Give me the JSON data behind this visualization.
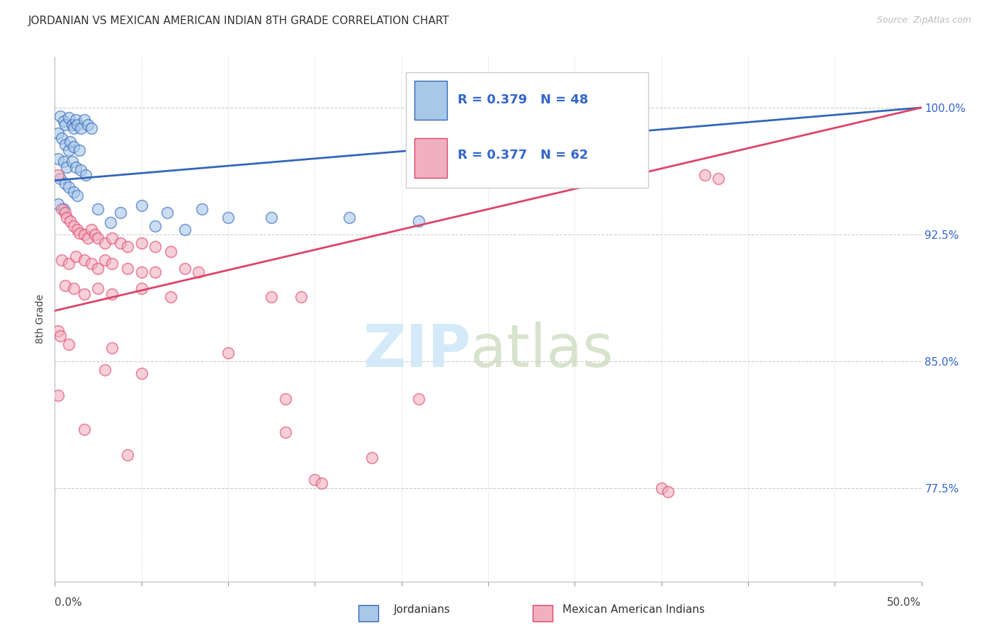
{
  "title": "JORDANIAN VS MEXICAN AMERICAN INDIAN 8TH GRADE CORRELATION CHART",
  "source": "Source: ZipAtlas.com",
  "ylabel": "8th Grade",
  "y_ticks": [
    100.0,
    92.5,
    85.0,
    77.5
  ],
  "x_range": [
    0.0,
    50.0
  ],
  "y_range": [
    72.0,
    103.0
  ],
  "legend": {
    "blue_R": "R = 0.379",
    "blue_N": "N = 48",
    "pink_R": "R = 0.377",
    "pink_N": "N = 62"
  },
  "blue_color": "#a8c8e8",
  "pink_color": "#f0b0c0",
  "blue_line_color": "#3366bb",
  "pink_line_color": "#dd4466",
  "legend_R_color": "#3366cc",
  "blue_scatter": [
    [
      0.3,
      99.5
    ],
    [
      0.5,
      99.2
    ],
    [
      0.6,
      99.0
    ],
    [
      0.8,
      99.4
    ],
    [
      1.0,
      99.0
    ],
    [
      1.1,
      98.8
    ],
    [
      1.2,
      99.3
    ],
    [
      1.3,
      99.0
    ],
    [
      1.5,
      98.8
    ],
    [
      1.7,
      99.3
    ],
    [
      1.9,
      99.0
    ],
    [
      2.1,
      98.8
    ],
    [
      0.2,
      98.5
    ],
    [
      0.4,
      98.2
    ],
    [
      0.6,
      97.8
    ],
    [
      0.8,
      97.5
    ],
    [
      0.9,
      98.0
    ],
    [
      1.1,
      97.7
    ],
    [
      1.4,
      97.5
    ],
    [
      0.2,
      97.0
    ],
    [
      0.5,
      96.8
    ],
    [
      0.7,
      96.5
    ],
    [
      1.0,
      96.8
    ],
    [
      1.2,
      96.5
    ],
    [
      1.5,
      96.3
    ],
    [
      1.8,
      96.0
    ],
    [
      0.3,
      95.8
    ],
    [
      0.6,
      95.5
    ],
    [
      0.8,
      95.3
    ],
    [
      1.1,
      95.0
    ],
    [
      1.3,
      94.8
    ],
    [
      0.2,
      94.3
    ],
    [
      0.5,
      94.0
    ],
    [
      2.5,
      94.0
    ],
    [
      3.8,
      93.8
    ],
    [
      5.0,
      94.2
    ],
    [
      6.5,
      93.8
    ],
    [
      8.5,
      94.0
    ],
    [
      10.0,
      93.5
    ],
    [
      12.5,
      93.5
    ],
    [
      17.0,
      93.5
    ],
    [
      21.0,
      93.3
    ],
    [
      25.5,
      99.8
    ],
    [
      27.0,
      99.5
    ],
    [
      29.5,
      99.3
    ],
    [
      3.2,
      93.2
    ],
    [
      5.8,
      93.0
    ],
    [
      7.5,
      92.8
    ]
  ],
  "pink_scatter": [
    [
      0.2,
      96.0
    ],
    [
      0.4,
      94.0
    ],
    [
      0.6,
      93.8
    ],
    [
      0.7,
      93.5
    ],
    [
      0.9,
      93.3
    ],
    [
      1.1,
      93.0
    ],
    [
      1.3,
      92.8
    ],
    [
      1.4,
      92.6
    ],
    [
      1.7,
      92.5
    ],
    [
      1.9,
      92.3
    ],
    [
      2.1,
      92.8
    ],
    [
      2.3,
      92.5
    ],
    [
      2.5,
      92.3
    ],
    [
      2.9,
      92.0
    ],
    [
      3.3,
      92.3
    ],
    [
      3.8,
      92.0
    ],
    [
      4.2,
      91.8
    ],
    [
      5.0,
      92.0
    ],
    [
      5.8,
      91.8
    ],
    [
      6.7,
      91.5
    ],
    [
      0.4,
      91.0
    ],
    [
      0.8,
      90.8
    ],
    [
      1.2,
      91.2
    ],
    [
      1.7,
      91.0
    ],
    [
      2.1,
      90.8
    ],
    [
      2.5,
      90.5
    ],
    [
      2.9,
      91.0
    ],
    [
      3.3,
      90.8
    ],
    [
      4.2,
      90.5
    ],
    [
      5.0,
      90.3
    ],
    [
      5.8,
      90.3
    ],
    [
      7.5,
      90.5
    ],
    [
      8.3,
      90.3
    ],
    [
      0.6,
      89.5
    ],
    [
      1.1,
      89.3
    ],
    [
      1.7,
      89.0
    ],
    [
      2.5,
      89.3
    ],
    [
      3.3,
      89.0
    ],
    [
      5.0,
      89.3
    ],
    [
      6.7,
      88.8
    ],
    [
      12.5,
      88.8
    ],
    [
      14.2,
      88.8
    ],
    [
      0.2,
      86.8
    ],
    [
      0.3,
      86.5
    ],
    [
      0.8,
      86.0
    ],
    [
      3.3,
      85.8
    ],
    [
      10.0,
      85.5
    ],
    [
      2.9,
      84.5
    ],
    [
      5.0,
      84.3
    ],
    [
      0.2,
      83.0
    ],
    [
      13.3,
      82.8
    ],
    [
      21.0,
      82.8
    ],
    [
      1.7,
      81.0
    ],
    [
      13.3,
      80.8
    ],
    [
      4.2,
      79.5
    ],
    [
      18.3,
      79.3
    ],
    [
      15.0,
      78.0
    ],
    [
      15.4,
      77.8
    ],
    [
      35.0,
      77.5
    ],
    [
      35.4,
      77.3
    ],
    [
      37.5,
      96.0
    ],
    [
      38.3,
      95.8
    ]
  ],
  "blue_trendline": [
    [
      0.0,
      95.7
    ],
    [
      50.0,
      100.0
    ]
  ],
  "pink_trendline": [
    [
      0.0,
      88.0
    ],
    [
      50.0,
      100.0
    ]
  ],
  "grid_color": "#cccccc",
  "bg_color": "#ffffff",
  "watermark_zip_color": "#d0e8f8",
  "watermark_atlas_color": "#c8d8b8"
}
